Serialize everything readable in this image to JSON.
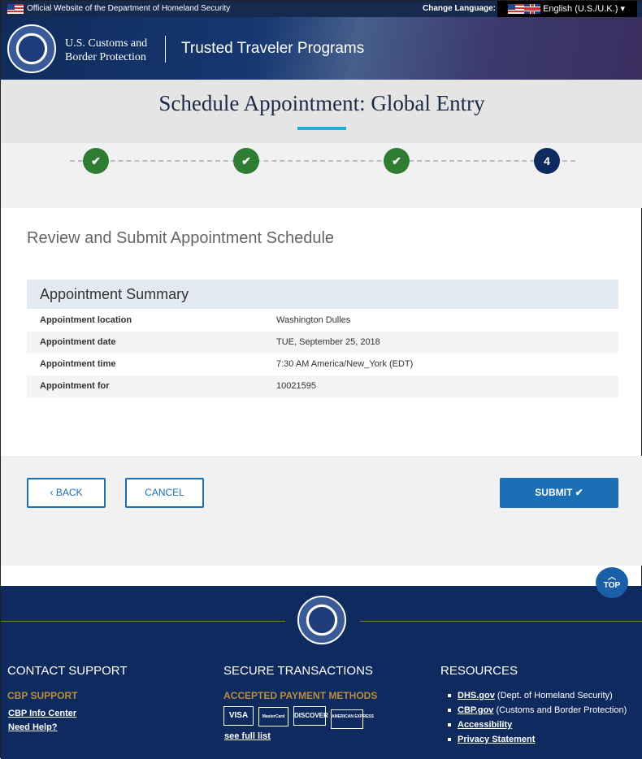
{
  "topbar": {
    "official_text": "Official Website of the Department of Homeland Security",
    "change_language_label": "Change Language:",
    "language": "English (U.S./U.K.)"
  },
  "header": {
    "agency_line1": "U.S. Customs and",
    "agency_line2": "Border Protection",
    "program": "Trusted Traveler Programs"
  },
  "page": {
    "title": "Schedule Appointment: Global Entry",
    "accent": "#1ab0d8"
  },
  "stepper": {
    "steps": [
      {
        "status": "done",
        "label": "✔"
      },
      {
        "status": "done",
        "label": "✔"
      },
      {
        "status": "done",
        "label": "✔"
      },
      {
        "status": "current",
        "label": "4"
      }
    ]
  },
  "main": {
    "heading": "Review and Submit Appointment Schedule",
    "summary_title": "Appointment Summary",
    "rows": [
      {
        "label": "Appointment location",
        "value": "Washington Dulles"
      },
      {
        "label": "Appointment date",
        "value": "TUE, September 25, 2018"
      },
      {
        "label": "Appointment time",
        "value": "7:30 AM America/New_York (EDT)"
      },
      {
        "label": "Appointment for",
        "value": "10021595"
      }
    ]
  },
  "actions": {
    "back": "BACK",
    "cancel": "CANCEL",
    "submit": "SUBMIT"
  },
  "top_button": "TOP",
  "footer": {
    "contact": {
      "title": "CONTACT SUPPORT",
      "subtitle": "CBP SUPPORT",
      "links": [
        "CBP Info Center",
        "Need Help?"
      ]
    },
    "secure": {
      "title": "SECURE TRANSACTIONS",
      "subtitle": "ACCEPTED PAYMENT METHODS",
      "cards": [
        "VISA",
        "MasterCard",
        "DISCOVER",
        "AMERICAN EXPRESS"
      ],
      "link": "see full list"
    },
    "resources": {
      "title": "RESOURCES",
      "items": [
        {
          "link": "DHS.gov",
          "desc": " (Dept. of Homeland Security)"
        },
        {
          "link": "CBP.gov",
          "desc": " (Customs and Border Protection)"
        },
        {
          "link": "Accessibility",
          "desc": ""
        },
        {
          "link": "Privacy Statement",
          "desc": ""
        }
      ]
    }
  }
}
